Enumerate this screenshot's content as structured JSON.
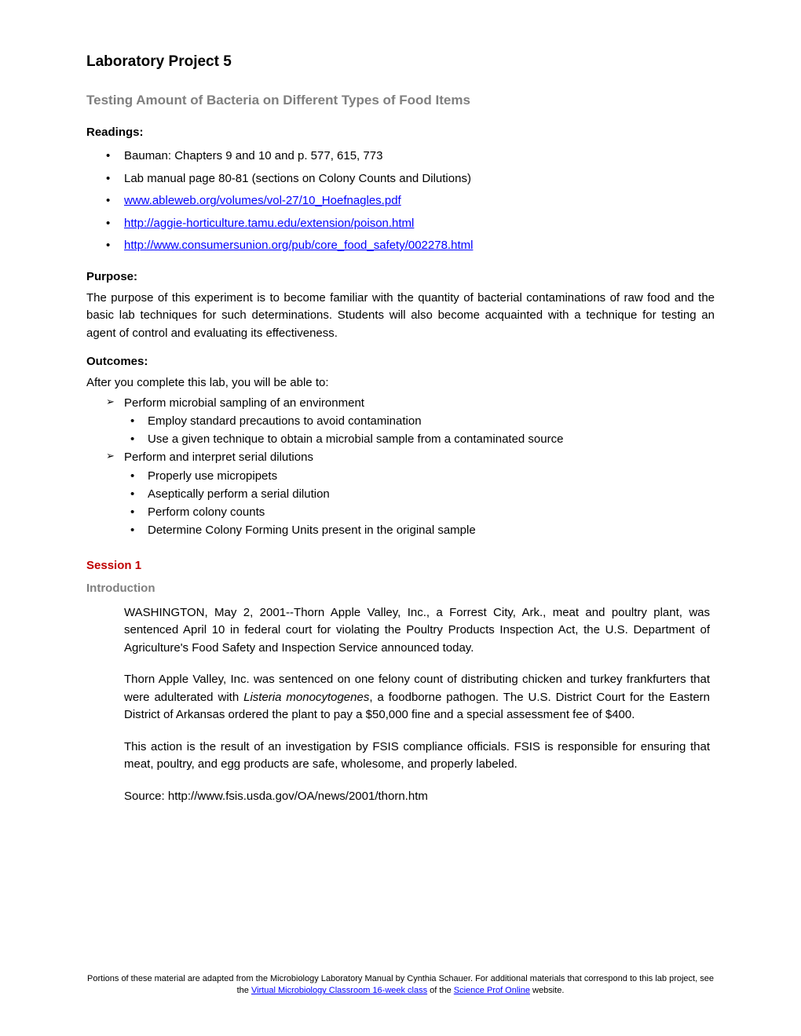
{
  "title": "Laboratory Project 5",
  "subtitle": "Testing Amount of Bacteria on Different Types of Food Items",
  "readings": {
    "heading": "Readings:",
    "items": [
      "Bauman: Chapters 9 and 10 and p. 577, 615, 773",
      "Lab manual page 80-81 (sections on Colony Counts and Dilutions)",
      "www.ableweb.org/volumes/vol-27/10_Hoefnagles.pdf",
      "http://aggie-horticulture.tamu.edu/extension/poison.html",
      "http://www.consumersunion.org/pub/core_food_safety/002278.html"
    ]
  },
  "purpose": {
    "heading": "Purpose:",
    "text": "The purpose of this experiment is to become familiar with the quantity of bacterial contaminations of raw food and the basic lab techniques for such determinations. Students will also become acquainted with a technique for testing an agent of control and evaluating its effectiveness."
  },
  "outcomes": {
    "heading": "Outcomes:",
    "lead": "After you complete this lab, you will be able to:",
    "item1": "Perform microbial sampling of an environment",
    "sub1a": "Employ standard precautions to avoid contamination",
    "sub1b": "Use a given technique to obtain a microbial sample from a contaminated source",
    "item2": "Perform and interpret serial dilutions",
    "sub2a": "Properly use micropipets",
    "sub2b": "Aseptically perform a serial dilution",
    "sub2c": "Perform colony counts",
    "sub2d": "Determine Colony Forming Units present in the original sample"
  },
  "session": {
    "heading": "Session 1",
    "intro_heading": "Introduction",
    "p1_pre": "WASHINGTON, May 2, 2001--Thorn Apple Valley, Inc., a Forrest City, Ark., meat and poultry plant, was sentenced April 10 in federal court for violating the Poultry Products Inspection Act, the U.S. Department of Agriculture's Food Safety and Inspection Service announced today.",
    "p2_pre": "Thorn Apple Valley, Inc. was sentenced on one felony count of distributing chicken and turkey frankfurters that were adulterated with ",
    "p2_em": "Listeria monocytogenes",
    "p2_post": ", a foodborne pathogen. The U.S. District Court for the Eastern District of Arkansas ordered the plant to pay a $50,000 fine and a special assessment fee of $400.",
    "p3": "This action is the result of an investigation by FSIS compliance officials. FSIS is responsible for ensuring that meat, poultry, and egg products are safe, wholesome, and properly labeled.",
    "p4": "Source:  http://www.fsis.usda.gov/OA/news/2001/thorn.htm"
  },
  "footer": {
    "pre": "Portions of these material are adapted from the Microbiology Laboratory Manual by Cynthia Schauer. For additional materials that correspond to this lab project, see the ",
    "link1": "Virtual Microbiology Classroom 16-week class",
    "mid": " of the ",
    "link2": "Science Prof Online",
    "post": " website."
  }
}
